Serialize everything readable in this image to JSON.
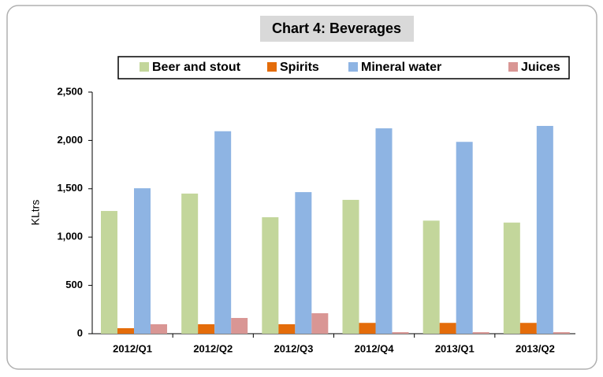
{
  "chart_data": {
    "type": "bar",
    "title": "Chart 4: Beverages",
    "y_label": "KLtrs",
    "categories": [
      "2012/Q1",
      "2012/Q2",
      "2012/Q3",
      "2012/Q4",
      "2013/Q1",
      "2013/Q2"
    ],
    "series": [
      {
        "name": "Beer and stout",
        "color": "#c3d69b",
        "values": [
          1270,
          1450,
          1205,
          1385,
          1170,
          1150
        ]
      },
      {
        "name": "Spirits",
        "color": "#e46c0a",
        "values": [
          57,
          98,
          98,
          112,
          112,
          112
        ]
      },
      {
        "name": "Mineral water",
        "color": "#8eb4e3",
        "values": [
          1505,
          2095,
          1465,
          2125,
          1985,
          2150
        ]
      },
      {
        "name": "Juices",
        "color": "#d99694",
        "values": [
          98,
          163,
          212,
          16,
          16,
          16
        ]
      }
    ],
    "ylim": [
      0,
      2500
    ],
    "yticks": [
      0,
      500,
      {
        "value": 1000,
        "label": "1,000"
      },
      {
        "value": 1500,
        "label": "1,500"
      },
      {
        "value": 2000,
        "label": "2,000"
      },
      {
        "value": 2500,
        "label": "2,500"
      }
    ],
    "grid": false,
    "legend": "top"
  }
}
